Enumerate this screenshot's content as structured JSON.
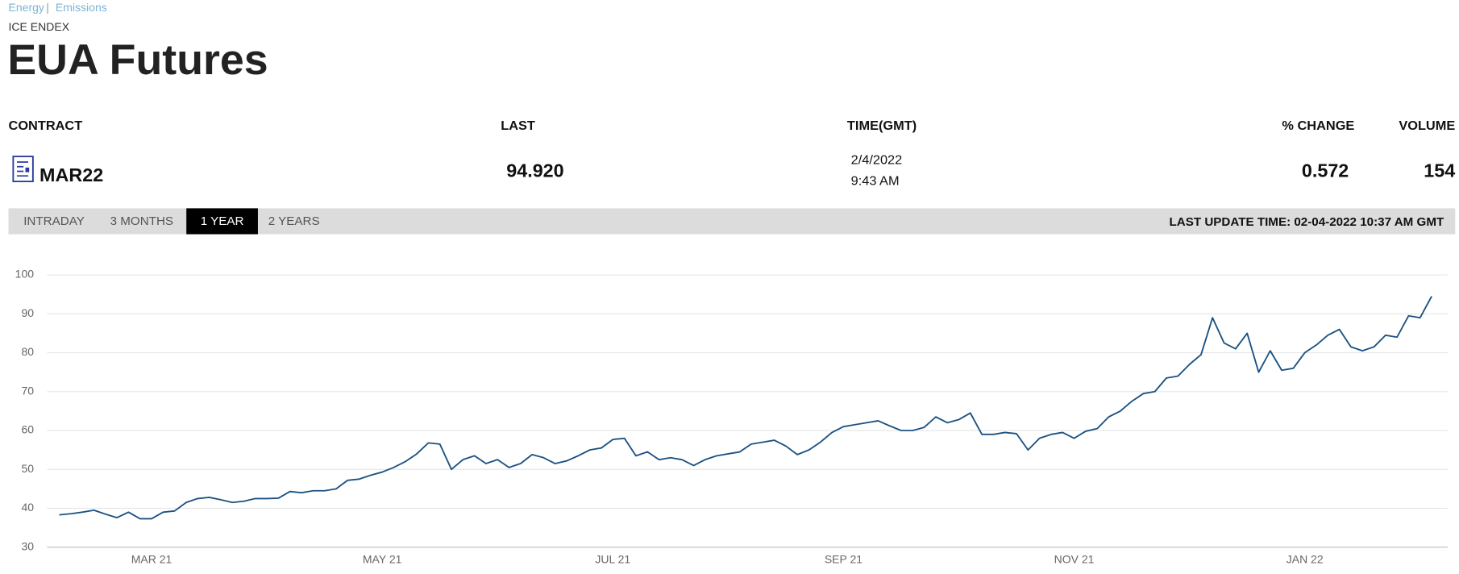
{
  "breadcrumb": [
    "Energy",
    "Emissions"
  ],
  "exchange": "ICE ENDEX",
  "title": "EUA Futures",
  "table": {
    "headers": [
      "CONTRACT",
      "LAST",
      "TIME(GMT)",
      "% CHANGE",
      "VOLUME"
    ],
    "row": {
      "contract": "MAR22",
      "last": "94.920",
      "date": "2/4/2022",
      "time": "9:43 AM",
      "change": "0.572",
      "volume": "154"
    }
  },
  "tabs": [
    "INTRADAY",
    "3 MONTHS",
    "1 YEAR",
    "2 YEARS"
  ],
  "active_tab": 2,
  "last_update": "LAST UPDATE TIME: 02-04-2022 10:37 AM GMT",
  "chart_data": {
    "type": "line",
    "color": "#1b5283",
    "grid": true,
    "categories": [
      null,
      null,
      null,
      null,
      null,
      null,
      null,
      null,
      "MAR 21",
      null,
      null,
      null,
      null,
      null,
      null,
      null,
      null,
      null,
      null,
      null,
      null,
      null,
      null,
      null,
      null,
      null,
      null,
      null,
      "MAY 21",
      null,
      null,
      null,
      null,
      null,
      null,
      null,
      null,
      null,
      null,
      null,
      null,
      null,
      null,
      null,
      null,
      null,
      null,
      null,
      "JUL 21",
      null,
      null,
      null,
      null,
      null,
      null,
      null,
      null,
      null,
      null,
      null,
      null,
      null,
      null,
      null,
      null,
      null,
      null,
      null,
      "SEP 21",
      null,
      null,
      null,
      null,
      null,
      null,
      null,
      null,
      null,
      null,
      null,
      null,
      null,
      null,
      null,
      null,
      null,
      null,
      null,
      "NOV 21",
      null,
      null,
      null,
      null,
      null,
      null,
      null,
      null,
      null,
      null,
      null,
      null,
      null,
      null,
      null,
      null,
      null,
      null,
      null,
      "JAN 22",
      null,
      null,
      null,
      null,
      null,
      null,
      null,
      null,
      null,
      null,
      null
    ],
    "values": [
      38.3,
      38.6,
      39.0,
      39.5,
      38.5,
      37.6,
      39.0,
      37.3,
      37.3,
      39.0,
      39.3,
      41.5,
      42.5,
      42.8,
      42.2,
      41.5,
      41.8,
      42.5,
      42.5,
      42.6,
      44.3,
      44.0,
      44.5,
      44.5,
      45.0,
      47.2,
      47.5,
      48.5,
      49.3,
      50.5,
      52.0,
      54.0,
      56.8,
      56.5,
      50.0,
      52.5,
      53.5,
      51.5,
      52.5,
      50.5,
      51.5,
      53.8,
      53.0,
      51.5,
      52.2,
      53.5,
      55.0,
      55.5,
      57.7,
      58.0,
      53.5,
      54.5,
      52.5,
      53.0,
      52.5,
      51.0,
      52.5,
      53.5,
      54.0,
      54.5,
      56.5,
      57.0,
      57.5,
      56.0,
      53.8,
      55.0,
      57.0,
      59.5,
      61.0,
      61.5,
      62.0,
      62.5,
      61.2,
      60.0,
      60.0,
      60.8,
      63.5,
      62.0,
      62.8,
      64.5,
      59.0,
      59.0,
      59.5,
      59.2,
      55.0,
      58.0,
      59.0,
      59.5,
      58.0,
      59.8,
      60.5,
      63.5,
      65.0,
      67.5,
      69.5,
      70.0,
      73.5,
      74.0,
      77.0,
      79.5,
      89.0,
      82.5,
      81.0,
      85.0,
      75.0,
      80.5,
      75.5,
      76.0,
      80.0,
      82.0,
      84.5,
      86.0,
      81.5,
      80.5,
      81.5,
      84.5,
      84.0,
      89.5,
      89.0,
      94.5
    ],
    "ylim": [
      30,
      100
    ],
    "yticks": [
      30,
      40,
      50,
      60,
      70,
      80,
      90,
      100
    ]
  }
}
